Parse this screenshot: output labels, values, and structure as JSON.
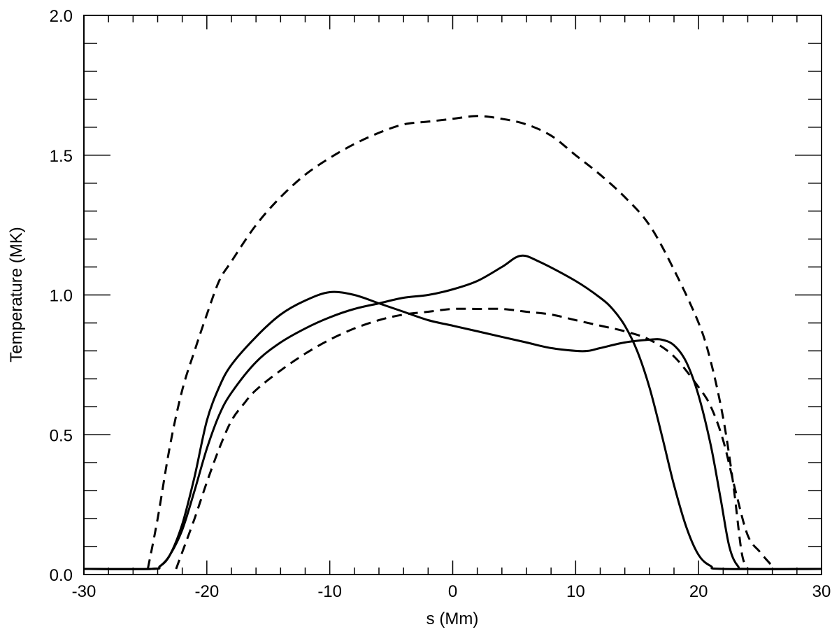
{
  "chart_data": {
    "type": "line",
    "title": "",
    "xlabel": "s (Mm)",
    "ylabel": "Temperature (MK)",
    "xlim": [
      -30,
      30
    ],
    "ylim": [
      0.0,
      2.0
    ],
    "x_ticks": [
      -30,
      -20,
      -10,
      0,
      10,
      20,
      30
    ],
    "x_tick_labels": [
      "-30",
      "-20",
      "-10",
      "0",
      "10",
      "20",
      "30"
    ],
    "x_minor_step": 2,
    "y_ticks": [
      0.0,
      0.5,
      1.0,
      1.5,
      2.0
    ],
    "y_tick_labels": [
      "0.0",
      "0.5",
      "1.0",
      "1.5",
      "2.0"
    ],
    "y_minor_step": 0.1,
    "grid": false,
    "legend": "none",
    "line_color": "#000000",
    "series": [
      {
        "style": "solid",
        "points": [
          [
            -30,
            0.02
          ],
          [
            -24.5,
            0.02
          ],
          [
            -23.8,
            0.03
          ],
          [
            -23,
            0.07
          ],
          [
            -22,
            0.18
          ],
          [
            -21,
            0.35
          ],
          [
            -20,
            0.55
          ],
          [
            -19,
            0.67
          ],
          [
            -18,
            0.75
          ],
          [
            -16,
            0.85
          ],
          [
            -14,
            0.93
          ],
          [
            -12,
            0.98
          ],
          [
            -10,
            1.01
          ],
          [
            -8,
            1.0
          ],
          [
            -6,
            0.97
          ],
          [
            -4,
            0.94
          ],
          [
            -2,
            0.91
          ],
          [
            0,
            0.89
          ],
          [
            2,
            0.87
          ],
          [
            4,
            0.85
          ],
          [
            6,
            0.83
          ],
          [
            8,
            0.81
          ],
          [
            10,
            0.8
          ],
          [
            11,
            0.8
          ],
          [
            12,
            0.81
          ],
          [
            14,
            0.83
          ],
          [
            16,
            0.84
          ],
          [
            17,
            0.84
          ],
          [
            18,
            0.82
          ],
          [
            19,
            0.76
          ],
          [
            20,
            0.64
          ],
          [
            21,
            0.46
          ],
          [
            21.8,
            0.27
          ],
          [
            22.5,
            0.1
          ],
          [
            23.2,
            0.03
          ],
          [
            24,
            0.02
          ],
          [
            30,
            0.02
          ]
        ]
      },
      {
        "style": "solid",
        "points": [
          [
            -30,
            0.02
          ],
          [
            -24.5,
            0.02
          ],
          [
            -23.8,
            0.03
          ],
          [
            -23,
            0.07
          ],
          [
            -22,
            0.16
          ],
          [
            -21,
            0.3
          ],
          [
            -20,
            0.45
          ],
          [
            -19,
            0.57
          ],
          [
            -18,
            0.65
          ],
          [
            -16,
            0.76
          ],
          [
            -14,
            0.83
          ],
          [
            -12,
            0.88
          ],
          [
            -10,
            0.92
          ],
          [
            -8,
            0.95
          ],
          [
            -6,
            0.97
          ],
          [
            -4,
            0.99
          ],
          [
            -2,
            1.0
          ],
          [
            0,
            1.02
          ],
          [
            2,
            1.05
          ],
          [
            4,
            1.1
          ],
          [
            5.5,
            1.14
          ],
          [
            7,
            1.12
          ],
          [
            10,
            1.05
          ],
          [
            12,
            0.99
          ],
          [
            13,
            0.95
          ],
          [
            14,
            0.89
          ],
          [
            15,
            0.8
          ],
          [
            16,
            0.67
          ],
          [
            17,
            0.5
          ],
          [
            18,
            0.32
          ],
          [
            19,
            0.17
          ],
          [
            20,
            0.07
          ],
          [
            21,
            0.03
          ],
          [
            22,
            0.02
          ],
          [
            30,
            0.02
          ]
        ]
      },
      {
        "style": "dashed",
        "points": [
          [
            -24.8,
            0.02
          ],
          [
            -24,
            0.2
          ],
          [
            -23,
            0.46
          ],
          [
            -22,
            0.66
          ],
          [
            -21,
            0.8
          ],
          [
            -20,
            0.93
          ],
          [
            -19,
            1.05
          ],
          [
            -18,
            1.12
          ],
          [
            -16,
            1.25
          ],
          [
            -14,
            1.35
          ],
          [
            -12,
            1.43
          ],
          [
            -10,
            1.49
          ],
          [
            -8,
            1.54
          ],
          [
            -6,
            1.58
          ],
          [
            -4,
            1.61
          ],
          [
            -2,
            1.62
          ],
          [
            0,
            1.63
          ],
          [
            2,
            1.64
          ],
          [
            4,
            1.63
          ],
          [
            6,
            1.61
          ],
          [
            8,
            1.57
          ],
          [
            10,
            1.5
          ],
          [
            12,
            1.43
          ],
          [
            14,
            1.35
          ],
          [
            16,
            1.25
          ],
          [
            18,
            1.09
          ],
          [
            20,
            0.9
          ],
          [
            21,
            0.76
          ],
          [
            22,
            0.56
          ],
          [
            22.8,
            0.33
          ],
          [
            23.5,
            0.08
          ],
          [
            24,
            0.02
          ]
        ]
      },
      {
        "style": "dashed",
        "points": [
          [
            -22.5,
            0.02
          ],
          [
            -22,
            0.08
          ],
          [
            -21,
            0.2
          ],
          [
            -20,
            0.33
          ],
          [
            -19,
            0.45
          ],
          [
            -18,
            0.55
          ],
          [
            -17,
            0.61
          ],
          [
            -16,
            0.66
          ],
          [
            -14,
            0.73
          ],
          [
            -12,
            0.79
          ],
          [
            -10,
            0.84
          ],
          [
            -8,
            0.88
          ],
          [
            -6,
            0.91
          ],
          [
            -4,
            0.93
          ],
          [
            -2,
            0.94
          ],
          [
            0,
            0.95
          ],
          [
            2,
            0.95
          ],
          [
            4,
            0.95
          ],
          [
            6,
            0.94
          ],
          [
            8,
            0.93
          ],
          [
            10,
            0.91
          ],
          [
            12,
            0.89
          ],
          [
            14,
            0.87
          ],
          [
            16,
            0.84
          ],
          [
            18,
            0.78
          ],
          [
            20,
            0.67
          ],
          [
            21,
            0.6
          ],
          [
            22,
            0.48
          ],
          [
            23,
            0.3
          ],
          [
            24,
            0.14
          ],
          [
            25,
            0.08
          ],
          [
            26,
            0.03
          ]
        ]
      }
    ]
  }
}
